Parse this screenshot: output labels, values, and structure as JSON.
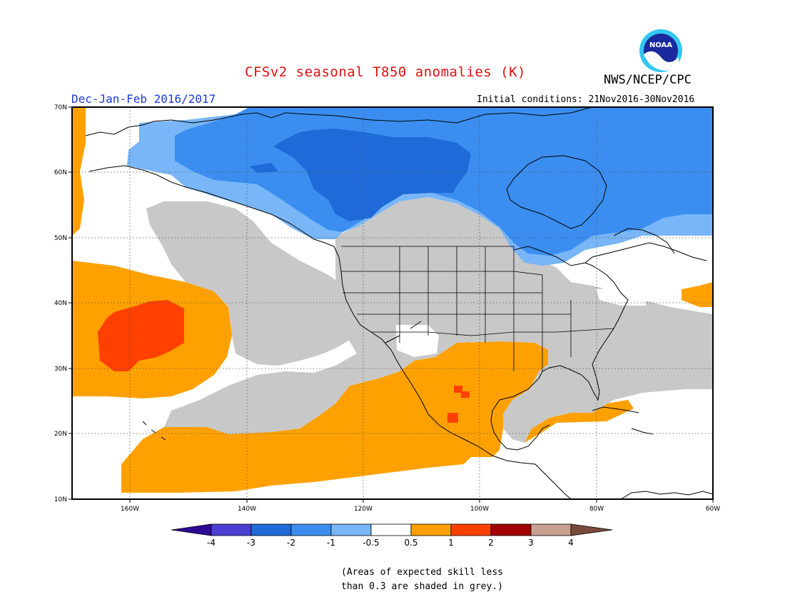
{
  "header": {
    "title": "CFSv2 seasonal T850 anomalies (K)",
    "agency": "NWS/NCEP/CPC",
    "season": "Dec-Jan-Feb 2016/2017",
    "initial_conditions": "Initial conditions: 21Nov2016-30Nov2016",
    "logo_text": "NOAA"
  },
  "map": {
    "lat_labels": [
      "70N",
      "60N",
      "50N",
      "40N",
      "30N",
      "20N",
      "10N"
    ],
    "lon_labels": [
      "160W",
      "140W",
      "120W",
      "100W",
      "80W",
      "60W"
    ],
    "lat_range": [
      10,
      70
    ],
    "lon_range": [
      -170,
      -60
    ]
  },
  "colorbar": {
    "colors": [
      "#2b0a96",
      "#4a3fd0",
      "#1e6ad8",
      "#3b8ef0",
      "#78b6f8",
      "#ffffff",
      "#fea100",
      "#ff4000",
      "#a00000",
      "#c8a090",
      "#7a4a3a"
    ],
    "tick_labels": [
      "-4",
      "-3",
      "-2",
      "-1",
      "-0.5",
      "0.5",
      "1",
      "2",
      "3",
      "4"
    ]
  },
  "colors": {
    "grey_low_skill": "#c8c8c8"
  },
  "footnote": {
    "line1": "(Areas of expected skill less",
    "line2": "than 0.3 are shaded in grey.)"
  }
}
